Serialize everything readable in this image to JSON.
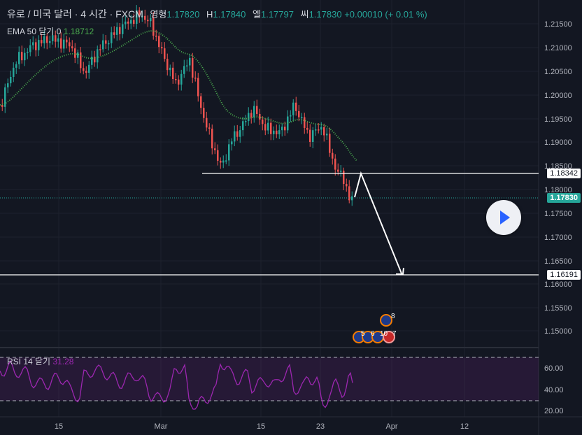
{
  "legend": {
    "symbol": "유로 / 미국 달러 · 4 시간 · FXCM",
    "open_label": "영형",
    "open": "1.17820",
    "high_label": "H",
    "high": "1.17840",
    "low_label": "엘",
    "low": "1.17797",
    "close_label": "씨",
    "close": "1.17830",
    "change": "+0.00010 (+ 0.01 %)"
  },
  "ema": {
    "label": "EMA 50 닫기 0",
    "value": "1.18712"
  },
  "rsi": {
    "label": "RSI 14 닫기",
    "value": "31.28"
  },
  "price_axis": [
    "1.21500",
    "1.21000",
    "1.20500",
    "1.20000",
    "1.19500",
    "1.19000",
    "1.18500",
    "1.18000",
    "1.17500",
    "1.17000",
    "1.16500",
    "1.16000",
    "1.15500",
    "1.15000"
  ],
  "rsi_axis": [
    "60.00",
    "40.00",
    "20.00"
  ],
  "time_axis": [
    "15",
    "Mar",
    "15",
    "23",
    "Apr",
    "12"
  ],
  "tags": {
    "resistance": "1.18342",
    "current": "1.17830",
    "target": "1.16191"
  },
  "events": [
    "5",
    "6",
    "10",
    "7",
    "8"
  ],
  "colors": {
    "up": "#26a69a",
    "down": "#ef5350",
    "ema": "#4caf50",
    "rsi": "#9c27b0",
    "bg": "#131722"
  }
}
